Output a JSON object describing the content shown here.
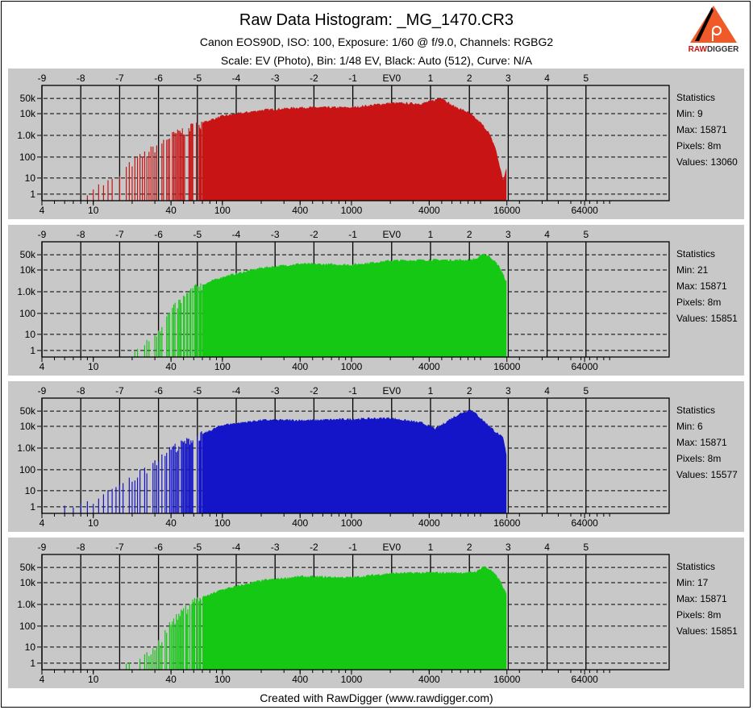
{
  "header": {
    "title": "Raw Data Histogram: _MG_1470.CR3",
    "subtitle1": "Canon EOS90D, ISO: 100, Exposure: 1/60 @ f/9.0, Channels: RGBG2",
    "subtitle2": "Scale: EV (Photo), Bin: 1/48 EV, Black: Auto (512), Curve: N/A",
    "logo_text": "RAWDIGGER"
  },
  "footer": "Created with RawDigger (www.rawdigger.com)",
  "chart_data": [
    {
      "type": "bar",
      "channel": "R",
      "color": "#c81414",
      "x_top_ticks": [
        "-9",
        "-8",
        "-7",
        "-6",
        "-5",
        "-4",
        "-3",
        "-2",
        "-1",
        "EV0",
        "1",
        "2",
        "3",
        "4",
        "5"
      ],
      "x_bottom_ticks": [
        4,
        10,
        40,
        100,
        400,
        1000,
        4000,
        16000,
        64000
      ],
      "y_ticks": [
        {
          "v": 1,
          "label": "1"
        },
        {
          "v": 10,
          "label": "10"
        },
        {
          "v": 100,
          "label": "100"
        },
        {
          "v": 1000,
          "label": "1.0k"
        },
        {
          "v": 10000,
          "label": "10k"
        },
        {
          "v": 50000,
          "label": "50k"
        }
      ],
      "xlim": [
        4,
        131072
      ],
      "yscale": "log",
      "envelope": [
        [
          9,
          1.5
        ],
        [
          10,
          3
        ],
        [
          15,
          10
        ],
        [
          20,
          60
        ],
        [
          30,
          300
        ],
        [
          40,
          1000
        ],
        [
          60,
          3000
        ],
        [
          100,
          8000
        ],
        [
          200,
          15000
        ],
        [
          400,
          20000
        ],
        [
          1000,
          20000
        ],
        [
          2000,
          32000
        ],
        [
          3500,
          30000
        ],
        [
          4500,
          45000
        ],
        [
          5000,
          58000
        ],
        [
          6000,
          25000
        ],
        [
          8000,
          12000
        ],
        [
          10000,
          4000
        ],
        [
          11500,
          1500
        ],
        [
          13000,
          300
        ],
        [
          15000,
          8
        ],
        [
          15871,
          30
        ]
      ],
      "stats": {
        "heading": "Statistics",
        "min": "Min: 9",
        "max": "Max: 15871",
        "pixels": "Pixels: 8m",
        "values": "Values: 13060"
      }
    },
    {
      "type": "bar",
      "channel": "G",
      "color": "#14c814",
      "x_top_ticks": [
        "-9",
        "-8",
        "-7",
        "-6",
        "-5",
        "-4",
        "-3",
        "-2",
        "-1",
        "EV0",
        "1",
        "2",
        "3",
        "4",
        "5"
      ],
      "x_bottom_ticks": [
        4,
        10,
        40,
        100,
        400,
        1000,
        4000,
        16000,
        64000
      ],
      "y_ticks": [
        {
          "v": 1,
          "label": "1"
        },
        {
          "v": 10,
          "label": "10"
        },
        {
          "v": 100,
          "label": "100"
        },
        {
          "v": 1000,
          "label": "1.0k"
        },
        {
          "v": 10000,
          "label": "10k"
        },
        {
          "v": 50000,
          "label": "50k"
        }
      ],
      "xlim": [
        4,
        131072
      ],
      "yscale": "log",
      "envelope": [
        [
          21,
          1
        ],
        [
          30,
          10
        ],
        [
          35,
          40
        ],
        [
          40,
          150
        ],
        [
          60,
          1500
        ],
        [
          100,
          5000
        ],
        [
          200,
          13000
        ],
        [
          400,
          20000
        ],
        [
          1000,
          18000
        ],
        [
          2000,
          28000
        ],
        [
          4000,
          30000
        ],
        [
          8000,
          30000
        ],
        [
          9500,
          35000
        ],
        [
          10500,
          60000
        ],
        [
          12000,
          40000
        ],
        [
          14000,
          15000
        ],
        [
          15871,
          3000
        ]
      ],
      "stats": {
        "heading": "Statistics",
        "min": "Min: 21",
        "max": "Max: 15871",
        "pixels": "Pixels: 8m",
        "values": "Values: 15851"
      }
    },
    {
      "type": "bar",
      "channel": "B",
      "color": "#1414c8",
      "x_top_ticks": [
        "-9",
        "-8",
        "-7",
        "-6",
        "-5",
        "-4",
        "-3",
        "-2",
        "-1",
        "EV0",
        "1",
        "2",
        "3",
        "4",
        "5"
      ],
      "x_bottom_ticks": [
        4,
        10,
        40,
        100,
        400,
        1000,
        4000,
        16000,
        64000
      ],
      "y_ticks": [
        {
          "v": 1,
          "label": "1"
        },
        {
          "v": 10,
          "label": "10"
        },
        {
          "v": 100,
          "label": "100"
        },
        {
          "v": 1000,
          "label": "1.0k"
        },
        {
          "v": 10000,
          "label": "10k"
        },
        {
          "v": 50000,
          "label": "50k"
        }
      ],
      "xlim": [
        4,
        131072
      ],
      "yscale": "log",
      "envelope": [
        [
          6,
          1
        ],
        [
          10,
          3
        ],
        [
          20,
          40
        ],
        [
          40,
          1000
        ],
        [
          60,
          3000
        ],
        [
          100,
          12000
        ],
        [
          200,
          20000
        ],
        [
          500,
          20000
        ],
        [
          2000,
          25000
        ],
        [
          3500,
          15000
        ],
        [
          4500,
          8000
        ],
        [
          6000,
          25000
        ],
        [
          7500,
          50000
        ],
        [
          8500,
          60000
        ],
        [
          10000,
          25000
        ],
        [
          13000,
          6000
        ],
        [
          15000,
          3000
        ],
        [
          15871,
          500
        ]
      ],
      "stats": {
        "heading": "Statistics",
        "min": "Min: 6",
        "max": "Max: 15871",
        "pixels": "Pixels: 8m",
        "values": "Values: 15577"
      }
    },
    {
      "type": "bar",
      "channel": "G2",
      "color": "#14c814",
      "x_top_ticks": [
        "-9",
        "-8",
        "-7",
        "-6",
        "-5",
        "-4",
        "-3",
        "-2",
        "-1",
        "EV0",
        "1",
        "2",
        "3",
        "4",
        "5"
      ],
      "x_bottom_ticks": [
        4,
        10,
        40,
        100,
        400,
        1000,
        4000,
        16000,
        64000
      ],
      "y_ticks": [
        {
          "v": 1,
          "label": "1"
        },
        {
          "v": 10,
          "label": "10"
        },
        {
          "v": 100,
          "label": "100"
        },
        {
          "v": 1000,
          "label": "1.0k"
        },
        {
          "v": 10000,
          "label": "10k"
        },
        {
          "v": 50000,
          "label": "50k"
        }
      ],
      "xlim": [
        4,
        131072
      ],
      "yscale": "log",
      "envelope": [
        [
          17,
          1
        ],
        [
          25,
          3
        ],
        [
          30,
          10
        ],
        [
          35,
          40
        ],
        [
          40,
          150
        ],
        [
          60,
          1500
        ],
        [
          100,
          5000
        ],
        [
          200,
          13000
        ],
        [
          400,
          20000
        ],
        [
          1000,
          18000
        ],
        [
          2000,
          28000
        ],
        [
          4000,
          30000
        ],
        [
          8000,
          30000
        ],
        [
          9500,
          35000
        ],
        [
          10500,
          60000
        ],
        [
          12000,
          40000
        ],
        [
          14000,
          15000
        ],
        [
          15871,
          3000
        ]
      ],
      "stats": {
        "heading": "Statistics",
        "min": "Min: 17",
        "max": "Max: 15871",
        "pixels": "Pixels: 8m",
        "values": "Values: 15851"
      }
    }
  ]
}
